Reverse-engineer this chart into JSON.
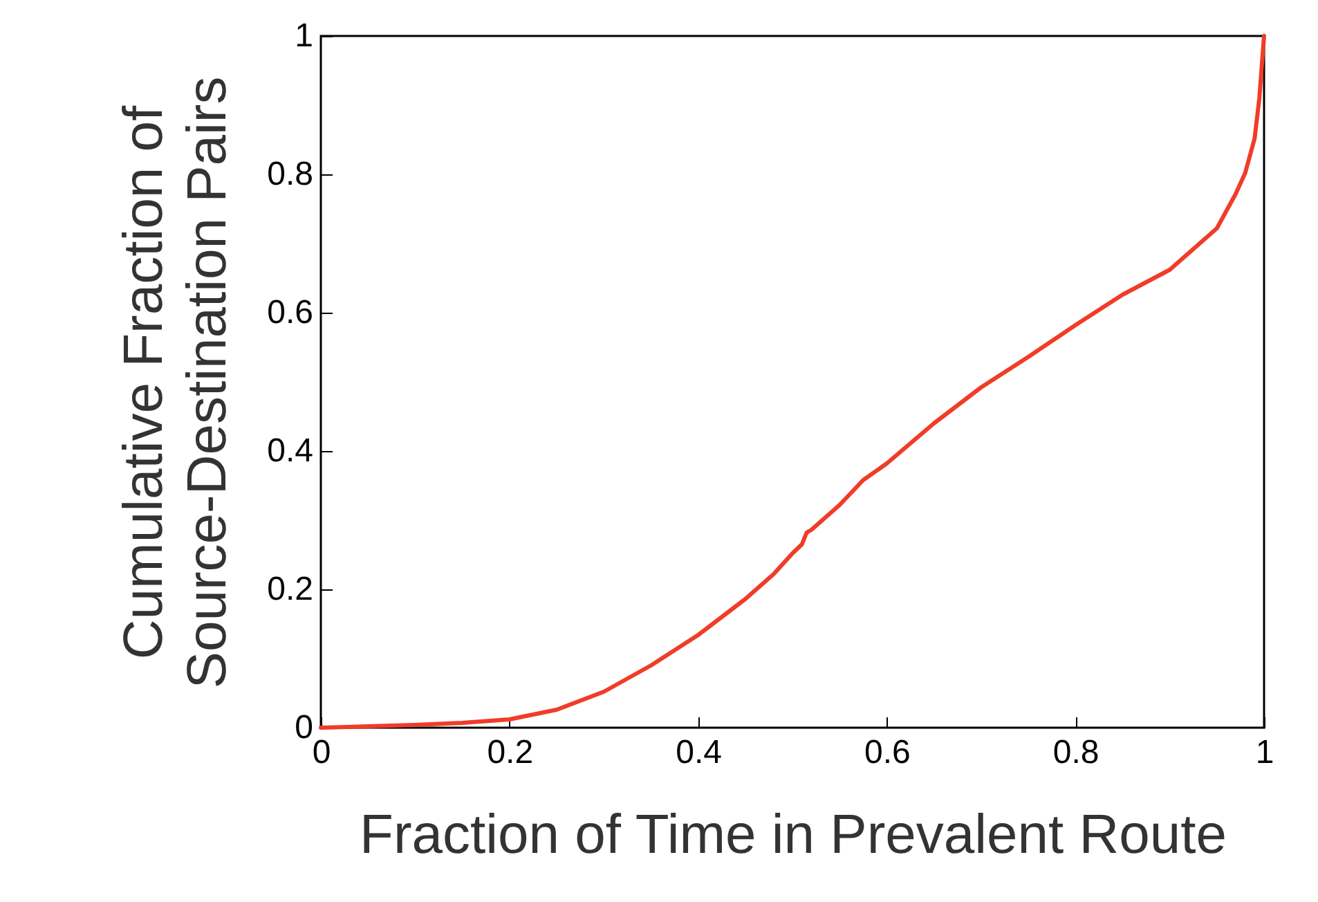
{
  "chart_data": {
    "type": "line",
    "xlabel": "Fraction of Time in Prevalent Route",
    "ylabel": "Cumulative Fraction of\nSource-Destination Pairs",
    "xlim": [
      0,
      1
    ],
    "ylim": [
      0,
      1
    ],
    "xticks": [
      0,
      0.2,
      0.4,
      0.6,
      0.8,
      1
    ],
    "yticks": [
      0,
      0.2,
      0.4,
      0.6,
      0.8,
      1
    ],
    "grid": false,
    "legend": false,
    "marker": "none",
    "line_style": "solid",
    "x": [
      0,
      0.05,
      0.1,
      0.15,
      0.2,
      0.25,
      0.3,
      0.35,
      0.4,
      0.45,
      0.48,
      0.5,
      0.51,
      0.515,
      0.52,
      0.55,
      0.575,
      0.6,
      0.65,
      0.7,
      0.75,
      0.8,
      0.85,
      0.9,
      0.92,
      0.95,
      0.97,
      0.98,
      0.99,
      0.995,
      1.0
    ],
    "series": [
      {
        "color": "#f03c28",
        "values": [
          0,
          0.002,
          0.004,
          0.007,
          0.012,
          0.026,
          0.052,
          0.09,
          0.134,
          0.186,
          0.222,
          0.252,
          0.265,
          0.282,
          0.286,
          0.322,
          0.358,
          0.382,
          0.44,
          0.492,
          0.536,
          0.582,
          0.626,
          0.662,
          0.686,
          0.722,
          0.772,
          0.802,
          0.852,
          0.91,
          1.0
        ]
      }
    ]
  }
}
